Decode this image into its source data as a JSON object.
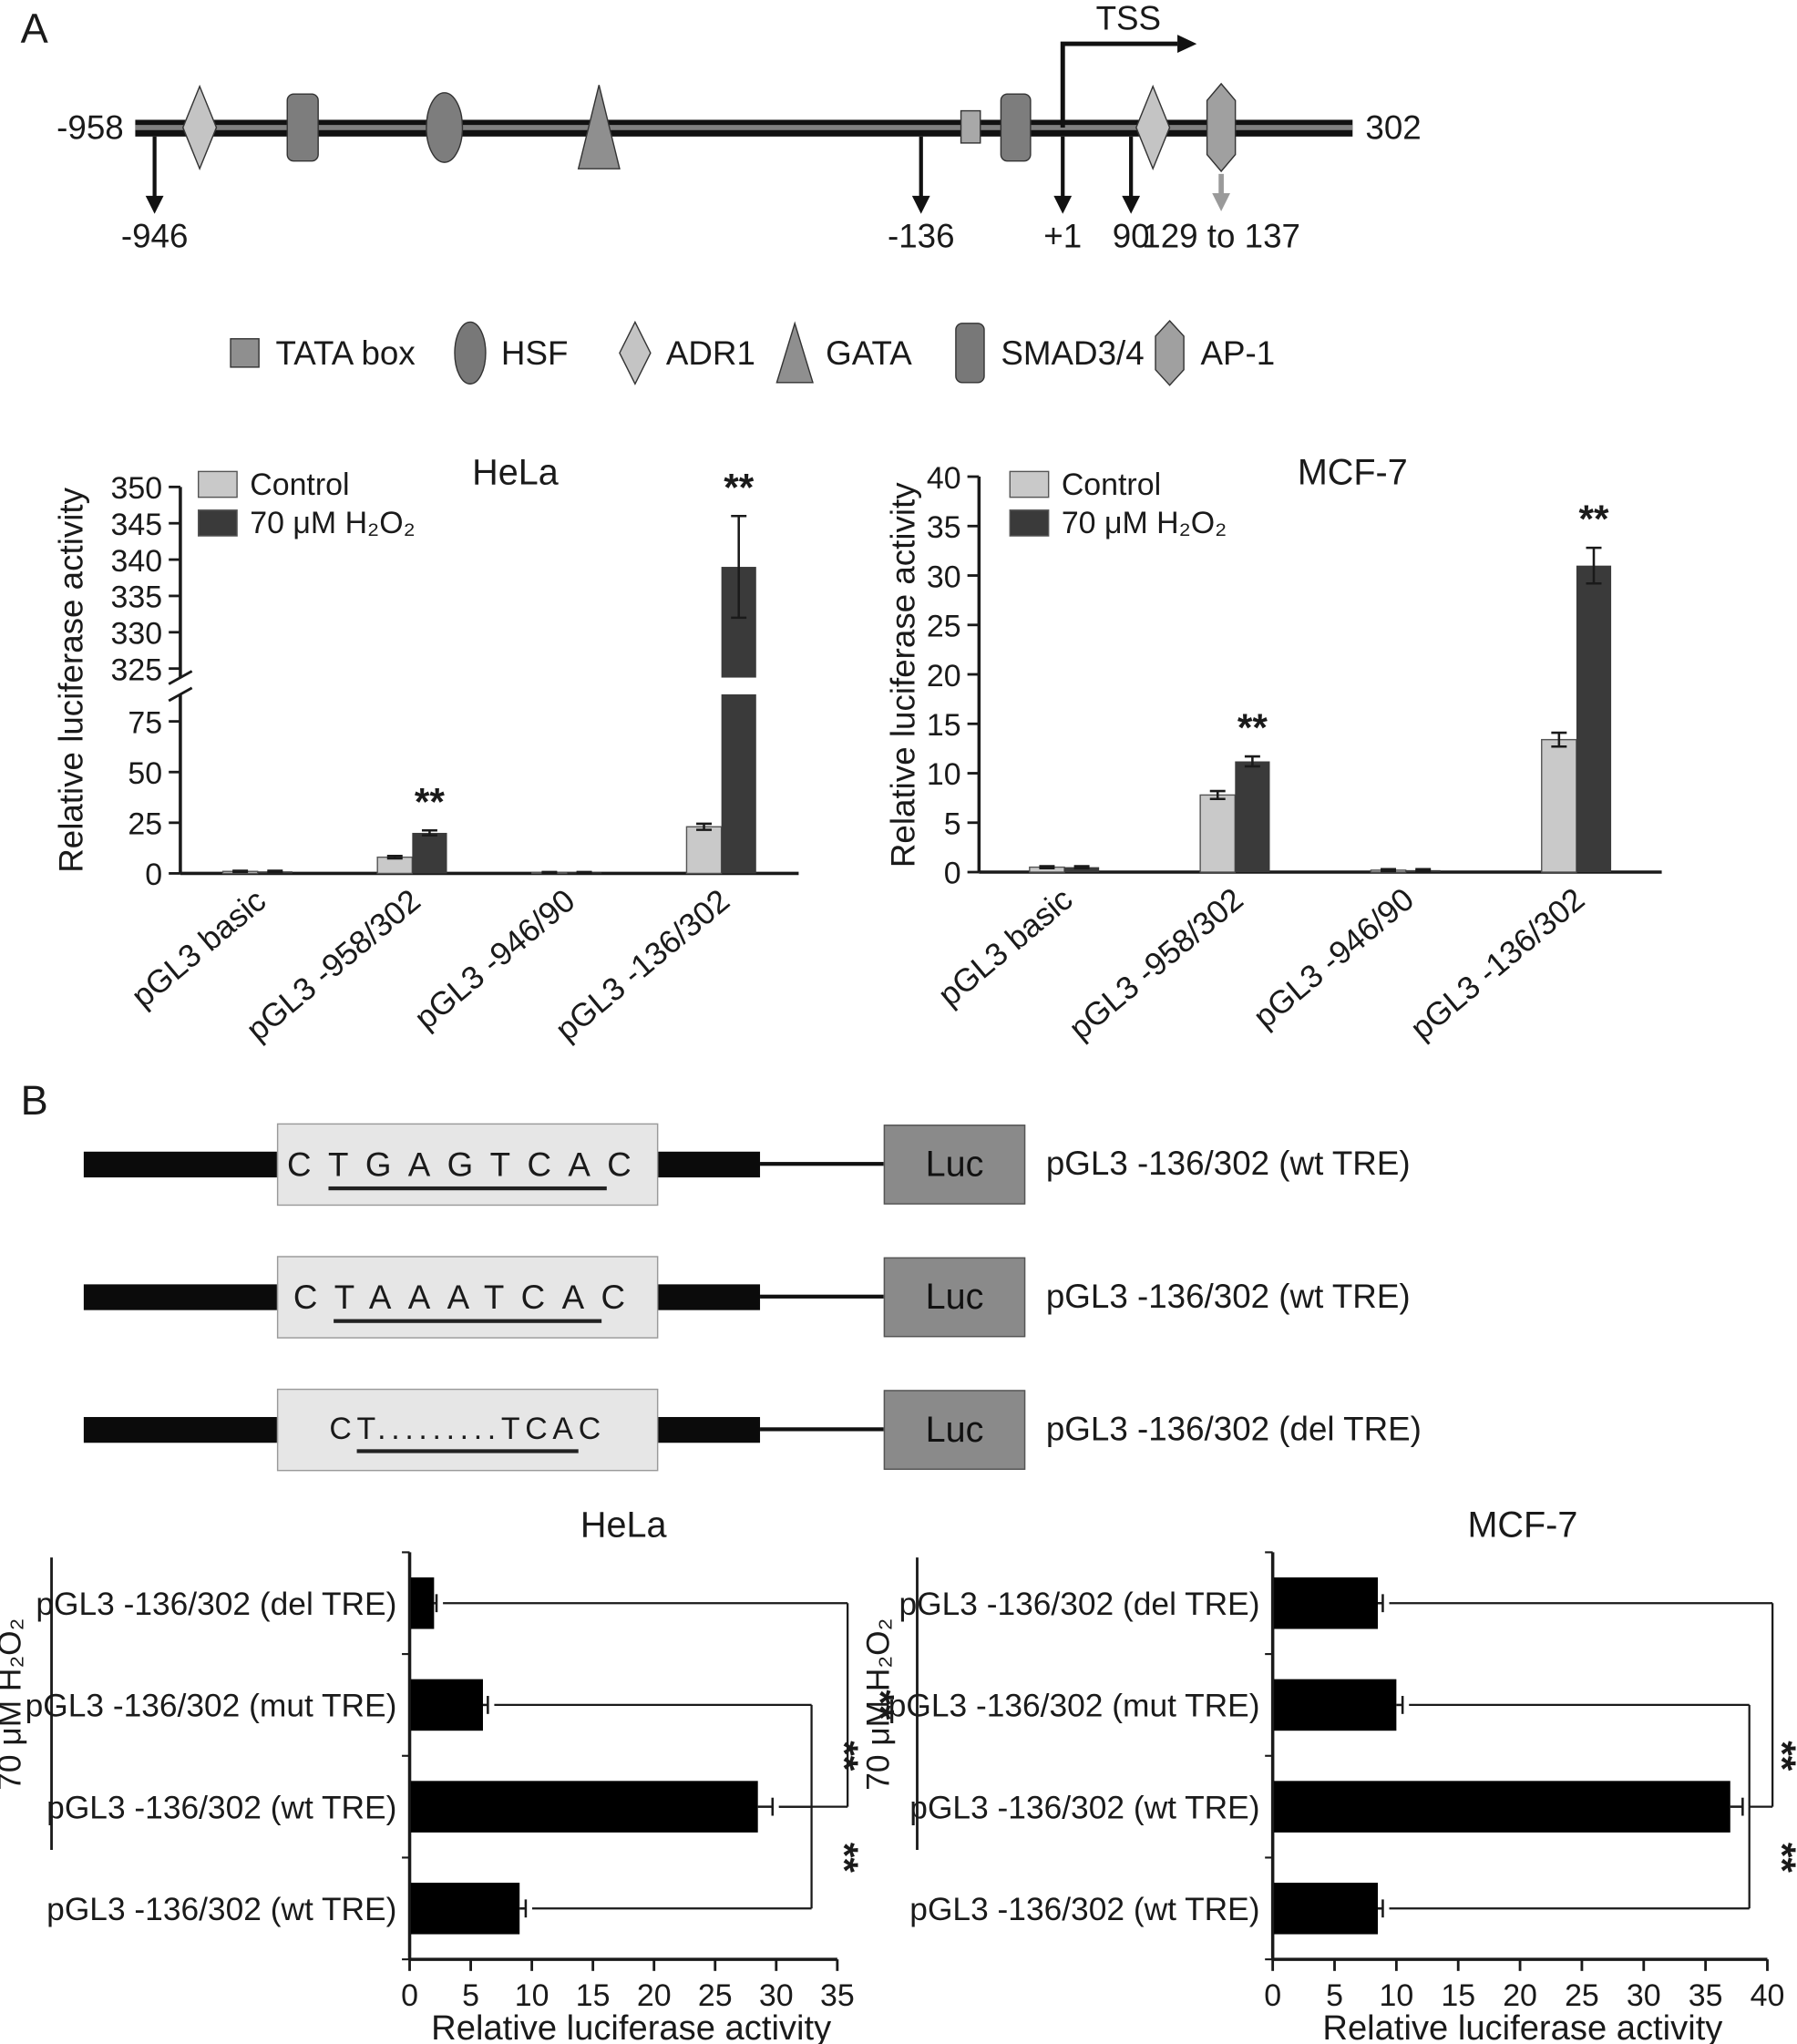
{
  "panelA": {
    "label": "A",
    "schematic": {
      "left_end": "-958",
      "right_end": "302",
      "tss": "TSS",
      "markers": [
        "-946",
        "-136",
        "+1",
        "90",
        "129 to 137"
      ]
    },
    "legend": [
      {
        "shape": "square",
        "label": "TATA box"
      },
      {
        "shape": "ellipse",
        "label": "HSF"
      },
      {
        "shape": "diamond",
        "label": "ADR1"
      },
      {
        "shape": "triangle",
        "label": "GATA"
      },
      {
        "shape": "roundrect",
        "label": "SMAD3/4"
      },
      {
        "shape": "hexagon",
        "label": "AP-1"
      }
    ]
  },
  "panelB": {
    "label": "B",
    "constructs": [
      {
        "seq_pre": "C",
        "seq_mid": "TGAGTCA",
        "seq_post": "C",
        "box_label": "Luc",
        "name": "pGL3 -136/302 (wt TRE)"
      },
      {
        "seq_pre": "C",
        "seq_mid": "TAAATCA",
        "seq_post": "C",
        "box_label": "Luc",
        "name": "pGL3 -136/302 (wt TRE)"
      },
      {
        "seq_pre": "C",
        "seq_mid": "T.........TCA",
        "seq_post": "C",
        "box_label": "Luc",
        "name": "pGL3 -136/302 (del TRE)"
      }
    ]
  },
  "chart_data": [
    {
      "id": "hela_a",
      "type": "bar",
      "orientation": "vertical",
      "title": "HeLa",
      "ylabel": "Relative luciferase activity",
      "categories": [
        "pGL3 basic",
        "pGL3 -958/302",
        "pGL3 -946/90",
        "pGL3 -136/302"
      ],
      "series": [
        {
          "name": "Control",
          "color": "#c9c9c9",
          "values": [
            1,
            8,
            0.5,
            23
          ],
          "errors": [
            0.3,
            0.6,
            0.2,
            1.5
          ]
        },
        {
          "name": "70 μM H₂O₂",
          "color": "#3a3a3a",
          "values": [
            1,
            20,
            0.5,
            339
          ],
          "errors": [
            0.3,
            1.2,
            0.2,
            7
          ]
        }
      ],
      "significance": [
        {
          "category": 1,
          "series": 1,
          "label": "**"
        },
        {
          "category": 3,
          "series": 1,
          "label": "**"
        }
      ],
      "axis": {
        "broken": true,
        "segments": [
          {
            "min": 0,
            "max": 75,
            "ticks": [
              0,
              25,
              50,
              75
            ]
          },
          {
            "min": 325,
            "max": 350,
            "ticks": [
              325,
              330,
              335,
              340,
              345,
              350
            ]
          }
        ]
      },
      "legend_position": "top-left"
    },
    {
      "id": "mcf7_a",
      "type": "bar",
      "orientation": "vertical",
      "title": "MCF-7",
      "ylabel": "Relative luciferase activity",
      "categories": [
        "pGL3 basic",
        "pGL3 -958/302",
        "pGL3 -946/90",
        "pGL3 -136/302"
      ],
      "series": [
        {
          "name": "Control",
          "color": "#c9c9c9",
          "values": [
            0.5,
            7.8,
            0.2,
            13.4
          ],
          "errors": [
            0.1,
            0.4,
            0.1,
            0.7
          ]
        },
        {
          "name": "70 μM H₂O₂",
          "color": "#3a3a3a",
          "values": [
            0.5,
            11.2,
            0.2,
            31
          ],
          "errors": [
            0.1,
            0.5,
            0.1,
            1.8
          ]
        }
      ],
      "significance": [
        {
          "category": 1,
          "series": 1,
          "label": "**"
        },
        {
          "category": 3,
          "series": 1,
          "label": "**"
        }
      ],
      "axis": {
        "broken": false,
        "min": 0,
        "max": 40,
        "ticks": [
          0,
          5,
          10,
          15,
          20,
          25,
          30,
          35,
          40
        ]
      },
      "legend_position": "top-left"
    },
    {
      "id": "hela_b",
      "type": "bar",
      "orientation": "horizontal",
      "title": "HeLa",
      "xlabel": "Relative luciferase activity",
      "group_label": "70 μM H₂O₂",
      "categories": [
        "pGL3 -136/302 (del TRE)",
        "pGL3 -136/302 (mut TRE)",
        "pGL3 -136/302 (wt TRE)",
        "pGL3 -136/302 (wt TRE)"
      ],
      "values": [
        2,
        6,
        28.5,
        9
      ],
      "errors": [
        0.2,
        0.4,
        1.2,
        0.5
      ],
      "bar_color": "#000000",
      "axis": {
        "min": 0,
        "max": 35,
        "ticks": [
          0,
          5,
          10,
          15,
          20,
          25,
          30,
          35
        ]
      },
      "brackets": [
        {
          "rows": [
            0,
            2
          ],
          "label": "**"
        },
        {
          "rows": [
            1,
            2
          ],
          "label": "**"
        },
        {
          "rows": [
            3,
            2
          ],
          "label": "**"
        }
      ]
    },
    {
      "id": "mcf7_b",
      "type": "bar",
      "orientation": "horizontal",
      "title": "MCF-7",
      "xlabel": "Relative luciferase activity",
      "group_label": "70 μM H₂O₂",
      "categories": [
        "pGL3 -136/302 (del TRE)",
        "pGL3 -136/302 (mut TRE)",
        "pGL3 -136/302 (wt TRE)",
        "pGL3 -136/302 (wt TRE)"
      ],
      "values": [
        8.5,
        10,
        37,
        8.5
      ],
      "errors": [
        0.4,
        0.5,
        1,
        0.4
      ],
      "bar_color": "#000000",
      "axis": {
        "min": 0,
        "max": 40,
        "ticks": [
          0,
          5,
          10,
          15,
          20,
          25,
          30,
          35,
          40
        ]
      },
      "brackets": [
        {
          "rows": [
            0,
            2
          ],
          "label": "**"
        },
        {
          "rows": [
            1,
            2
          ],
          "label": "**"
        },
        {
          "rows": [
            3,
            2
          ],
          "label": "**"
        }
      ]
    }
  ]
}
